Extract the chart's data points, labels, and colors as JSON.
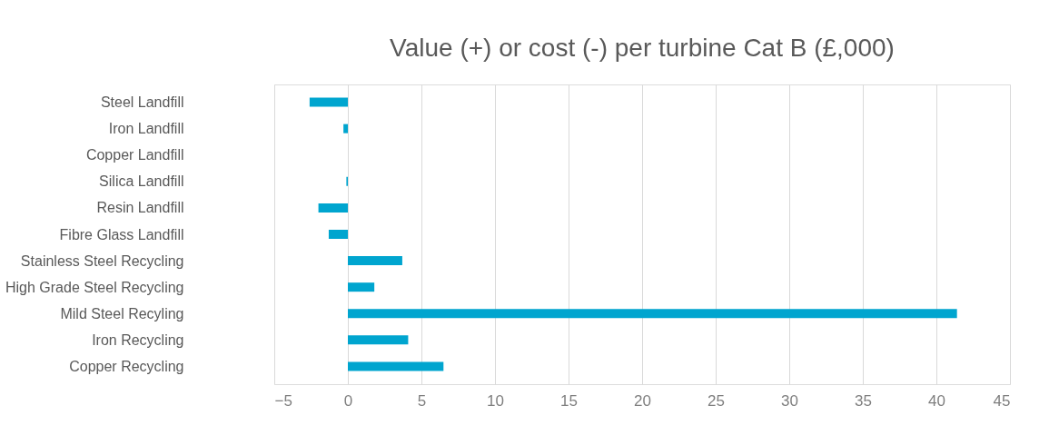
{
  "chart_data": {
    "type": "bar",
    "orientation": "horizontal",
    "title": "Value (+) or cost (-)  per turbine Cat B (£,000)",
    "categories": [
      "Steel Landfill",
      "Iron Landfill",
      "Copper Landfill",
      "Silica Landfill",
      "Resin Landfill",
      "Fibre Glass Landfill",
      "Stainless Steel Recycling",
      "High Grade Steel Recycling",
      "Mild Steel Recyling",
      "Iron Recycling",
      "Copper Recycling"
    ],
    "values": [
      -2.6,
      -0.3,
      0,
      -0.1,
      -2.0,
      -1.3,
      3.7,
      1.8,
      41.4,
      4.1,
      6.5
    ],
    "color": "#00a5cf",
    "xlim": [
      -5,
      45
    ],
    "xticks": [
      -5,
      0,
      5,
      10,
      15,
      20,
      25,
      30,
      35,
      40,
      45
    ],
    "grid": "x",
    "legend": false
  }
}
